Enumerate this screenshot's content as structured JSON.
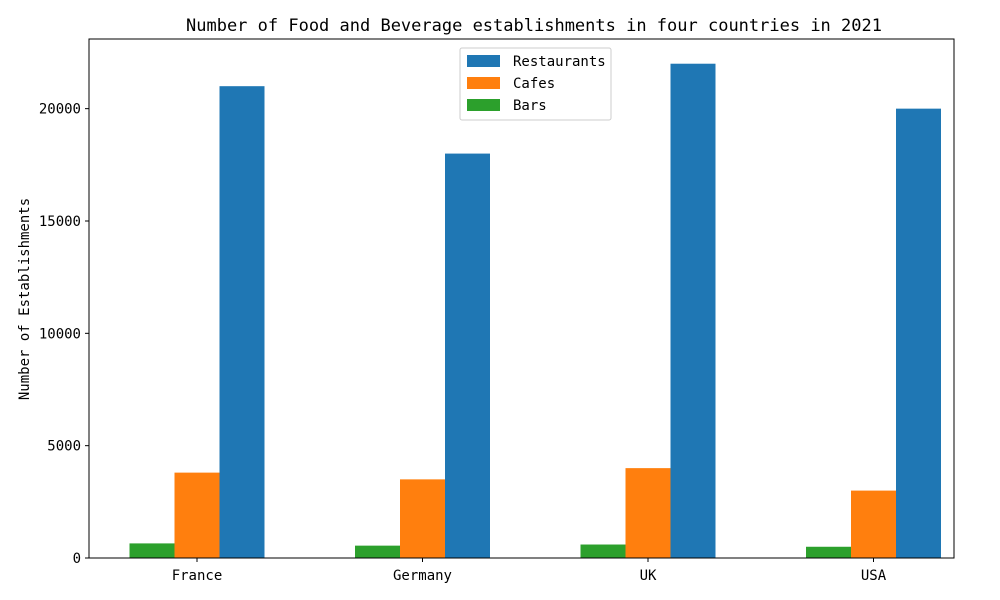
{
  "chart_data": {
    "type": "bar",
    "title": "Number of Food and Beverage establishments in four countries in 2021",
    "xlabel": "",
    "ylabel": "Number of Establishments",
    "categories": [
      "France",
      "Germany",
      "UK",
      "USA"
    ],
    "series": [
      {
        "name": "Bars",
        "values": [
          650,
          550,
          600,
          500
        ],
        "color": "#2ca02c"
      },
      {
        "name": "Cafes",
        "values": [
          3800,
          3500,
          4000,
          3000
        ],
        "color": "#ff7f0e"
      },
      {
        "name": "Restaurants",
        "values": [
          21000,
          18000,
          22000,
          20000
        ],
        "color": "#1f77b4"
      }
    ],
    "legend_order": [
      "Restaurants",
      "Cafes",
      "Bars"
    ],
    "yticks": [
      0,
      5000,
      10000,
      15000,
      20000
    ],
    "ylim": [
      0,
      23100
    ],
    "grid": false,
    "legend_position": "top-center"
  }
}
